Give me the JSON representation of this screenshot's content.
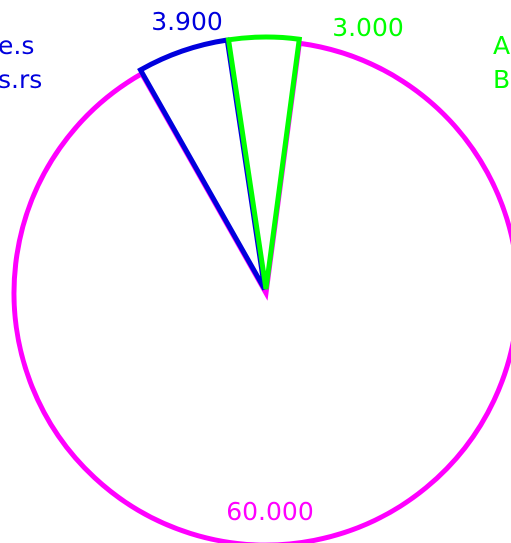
{
  "chart_data": {
    "type": "pie",
    "title": "",
    "slices": [
      {
        "label": "",
        "value": 60.0,
        "value_text": "60.000",
        "color": "#ff00ff",
        "exploded": false
      },
      {
        "label": "",
        "value": 3.9,
        "value_text": "3.900",
        "color": "#0000dd",
        "exploded": true
      },
      {
        "label": "",
        "value": 3.0,
        "value_text": "3.000",
        "color": "#00ff00",
        "exploded": true
      }
    ],
    "legend_left": [
      "e.s",
      "s.rs"
    ],
    "legend_right": [
      "A",
      "B"
    ],
    "legend_colors": {
      "left": "#0000dd",
      "right": "#00ff00"
    }
  }
}
